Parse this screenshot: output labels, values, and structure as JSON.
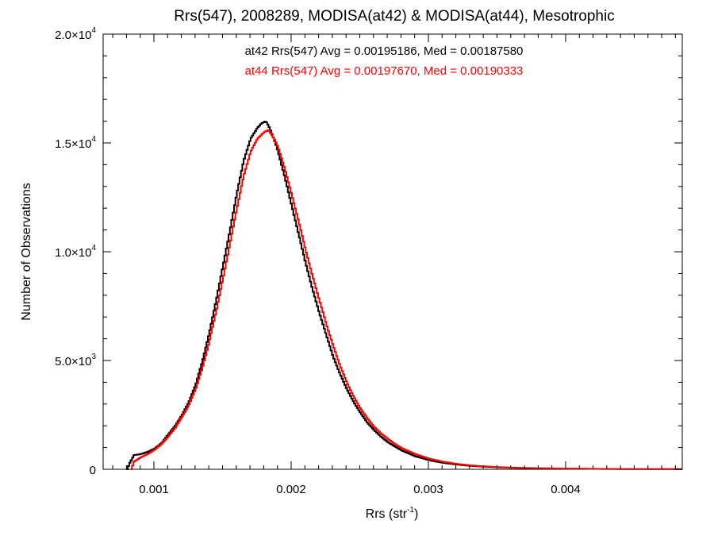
{
  "chart_data": {
    "type": "line",
    "title": "Rrs(547), 2008289, MODISA(at42) & MODISA(at44), Mesotrophic",
    "xlabel": "Rrs (str",
    "xlabel_sup": "-1",
    "xlabel_close": ")",
    "ylabel": "Number of Observations",
    "xlim": [
      0.00063,
      0.00485
    ],
    "ylim": [
      0,
      20000
    ],
    "x_ticks": [
      {
        "value": 0.001,
        "label": "0.001"
      },
      {
        "value": 0.002,
        "label": "0.002"
      },
      {
        "value": 0.003,
        "label": "0.003"
      },
      {
        "value": 0.004,
        "label": "0.004"
      }
    ],
    "y_ticks": [
      {
        "value": 0,
        "label": "0",
        "sup": ""
      },
      {
        "value": 5000,
        "label": "5.0×10",
        "sup": "3"
      },
      {
        "value": 10000,
        "label": "1.0×10",
        "sup": "4"
      },
      {
        "value": 15000,
        "label": "1.5×10",
        "sup": "4"
      },
      {
        "value": 20000,
        "label": "2.0×10",
        "sup": "4"
      }
    ],
    "grid": false,
    "annotations": [
      {
        "text": "at42 Rrs(547) Avg = 0.00195186, Med = 0.00187580",
        "color": "#000000"
      },
      {
        "text": "at44 Rrs(547) Avg = 0.00197670, Med = 0.00190333",
        "color": "#ff0000"
      }
    ],
    "series": [
      {
        "color": "#000000",
        "x": [
          0.0008,
          0.00082,
          0.00085,
          0.0009,
          0.00095,
          0.001,
          0.00105,
          0.0011,
          0.00115,
          0.0012,
          0.00125,
          0.0013,
          0.00135,
          0.0014,
          0.00145,
          0.0015,
          0.00155,
          0.0016,
          0.00165,
          0.0017,
          0.00175,
          0.00178,
          0.00181,
          0.00183,
          0.00185,
          0.00188,
          0.0019,
          0.00195,
          0.002,
          0.00205,
          0.0021,
          0.00215,
          0.0022,
          0.00225,
          0.0023,
          0.00235,
          0.0024,
          0.00245,
          0.0025,
          0.00255,
          0.0026,
          0.00265,
          0.0027,
          0.00275,
          0.0028,
          0.0029,
          0.003,
          0.0031,
          0.0032,
          0.0033,
          0.0034,
          0.0035,
          0.0036,
          0.0037,
          0.0038,
          0.0039,
          0.004,
          0.0042,
          0.0044,
          0.0046,
          0.00485
        ],
        "y": [
          0,
          300,
          650,
          700,
          800,
          950,
          1200,
          1600,
          2000,
          2500,
          3100,
          3900,
          5000,
          6300,
          7800,
          9400,
          11000,
          12700,
          14200,
          15200,
          15700,
          15900,
          16000,
          15800,
          15500,
          15000,
          14600,
          13400,
          12100,
          10800,
          9500,
          8300,
          7200,
          6200,
          5200,
          4400,
          3700,
          3100,
          2600,
          2150,
          1800,
          1500,
          1250,
          1050,
          870,
          600,
          420,
          300,
          220,
          160,
          120,
          90,
          70,
          55,
          45,
          35,
          28,
          18,
          12,
          8,
          5
        ]
      },
      {
        "color": "#ff0000",
        "x": [
          0.00083,
          0.00085,
          0.0009,
          0.00095,
          0.001,
          0.00105,
          0.0011,
          0.00115,
          0.0012,
          0.00125,
          0.0013,
          0.00135,
          0.0014,
          0.00145,
          0.0015,
          0.00155,
          0.0016,
          0.00165,
          0.0017,
          0.00175,
          0.0018,
          0.00183,
          0.00185,
          0.00188,
          0.0019,
          0.00195,
          0.002,
          0.00205,
          0.0021,
          0.00215,
          0.0022,
          0.00225,
          0.0023,
          0.00235,
          0.0024,
          0.00245,
          0.0025,
          0.00255,
          0.0026,
          0.00265,
          0.0027,
          0.00275,
          0.0028,
          0.0029,
          0.003,
          0.0031,
          0.0032,
          0.0033,
          0.0034,
          0.0035,
          0.0036,
          0.0037,
          0.0038,
          0.0039,
          0.004,
          0.0042,
          0.0044,
          0.0046,
          0.00485
        ],
        "y": [
          0,
          350,
          550,
          700,
          900,
          1150,
          1500,
          1900,
          2400,
          2950,
          3700,
          4700,
          5900,
          7300,
          8800,
          10400,
          12000,
          13500,
          14600,
          15200,
          15500,
          15600,
          15400,
          15100,
          14800,
          13800,
          12600,
          11400,
          10100,
          8900,
          7800,
          6700,
          5700,
          4800,
          4000,
          3350,
          2800,
          2350,
          1950,
          1650,
          1400,
          1170,
          980,
          700,
          490,
          350,
          250,
          180,
          135,
          100,
          80,
          62,
          50,
          40,
          32,
          20,
          13,
          9,
          6
        ]
      }
    ]
  }
}
